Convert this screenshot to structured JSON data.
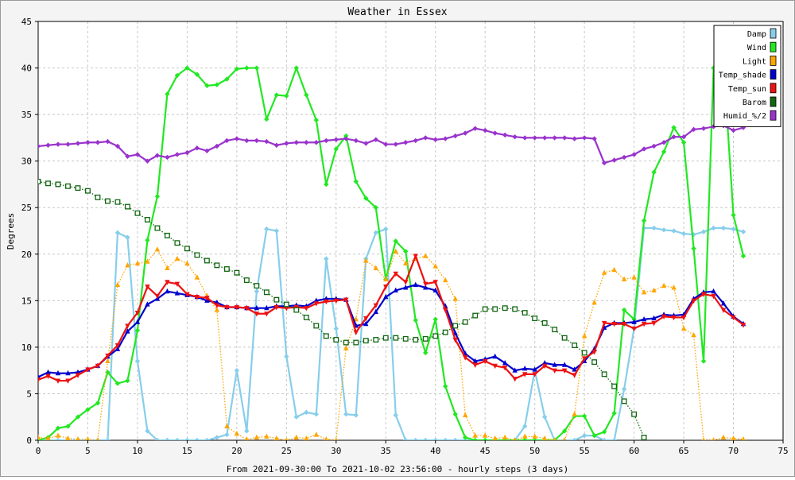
{
  "chart_data": {
    "type": "line",
    "title": "Weather in Essex",
    "xlabel": "From 2021-09-30:00 To 2021-10-02 23:56:00 - hourly steps (3 days)",
    "ylabel": "Degrees",
    "xlim": [
      0,
      75
    ],
    "ylim": [
      0,
      45
    ],
    "x_ticks": [
      0,
      5,
      10,
      15,
      20,
      25,
      30,
      35,
      40,
      45,
      50,
      55,
      60,
      65,
      70,
      75
    ],
    "y_ticks": [
      0,
      5,
      10,
      15,
      20,
      25,
      30,
      35,
      40,
      45
    ],
    "grid": true,
    "legend_position": "top-right",
    "series": [
      {
        "name": "Damp",
        "color": "#87ceeb",
        "marker": "diamond",
        "line": "solid",
        "values": [
          0,
          0,
          0,
          0,
          0,
          0,
          0,
          0,
          22.3,
          21.8,
          8.5,
          1,
          0,
          0,
          0,
          0,
          0,
          0,
          0.3,
          0.6,
          7.5,
          1,
          16,
          22.7,
          22.5,
          9,
          2.5,
          3,
          2.8,
          19.5,
          12,
          2.8,
          2.7,
          19.5,
          22.3,
          22.7,
          2.7,
          0,
          0,
          0,
          0,
          0,
          0,
          0,
          0,
          0,
          0,
          0,
          0,
          1.5,
          7.5,
          2.5,
          0,
          0,
          0,
          0.5,
          0.5,
          0,
          0,
          5.5,
          12,
          22.8,
          22.8,
          22.6,
          22.5,
          22.2,
          22.1,
          22.4,
          22.8,
          22.8,
          22.7,
          22.4
        ]
      },
      {
        "name": "Wind",
        "color": "#22e822",
        "marker": "diamond",
        "line": "solid",
        "values": [
          0,
          0.3,
          1.3,
          1.5,
          2.5,
          3.3,
          4,
          7.3,
          6.1,
          6.4,
          11.8,
          21.5,
          26.2,
          37.2,
          39.2,
          40,
          39.3,
          38.1,
          38.2,
          38.8,
          39.9,
          40,
          40,
          34.5,
          37.1,
          37,
          40,
          37.1,
          34.4,
          27.5,
          31.3,
          32.7,
          27.8,
          26,
          25,
          17.3,
          21.4,
          20.3,
          12.9,
          9.4,
          13,
          5.8,
          2.8,
          0.3,
          0,
          0,
          0,
          0,
          0,
          0,
          0,
          0,
          0,
          1,
          2.6,
          2.6,
          0.5,
          0.9,
          2.9,
          14,
          13,
          23.6,
          28.8,
          31,
          33.6,
          32,
          20.6,
          8.5,
          40,
          40.5,
          24.2,
          19.8
        ]
      },
      {
        "name": "Light",
        "color": "#ffa500",
        "marker": "triangle",
        "line": "dotted",
        "values": [
          0.3,
          0.2,
          0.5,
          0.2,
          0.1,
          0.1,
          0,
          8.5,
          16.7,
          18.8,
          19,
          19.2,
          20.5,
          18.5,
          19.5,
          19,
          17.5,
          15.5,
          14,
          1.5,
          0.7,
          0.1,
          0.3,
          0.4,
          0.2,
          0,
          0.3,
          0.2,
          0.6,
          0.1,
          0,
          9.9,
          13,
          19.3,
          18.5,
          17.3,
          20.3,
          19,
          19.5,
          19.8,
          18.7,
          17.2,
          15.2,
          2.7,
          0.5,
          0.5,
          0.2,
          0.3,
          0,
          0.4,
          0.4,
          0.2,
          0,
          0,
          2.8,
          11.2,
          14.8,
          18,
          18.3,
          17.3,
          17.5,
          15.9,
          16.1,
          16.6,
          16.4,
          12,
          11.3,
          0,
          0,
          0.3,
          0.2,
          0.1
        ]
      },
      {
        "name": "Temp_shade",
        "color": "#0000cc",
        "marker": "triangle",
        "line": "solid",
        "values": [
          6.8,
          7.3,
          7.2,
          7.2,
          7.3,
          7.6,
          8,
          9,
          9.8,
          11.7,
          12.7,
          14.6,
          15.2,
          16,
          15.8,
          15.6,
          15.4,
          15,
          14.8,
          14.3,
          14.3,
          14.2,
          14.2,
          14.2,
          14.4,
          14.4,
          14.5,
          14.4,
          15,
          15.2,
          15.2,
          15.1,
          12.3,
          12.5,
          13.8,
          15.4,
          16.1,
          16.4,
          16.7,
          16.4,
          16.1,
          14.4,
          11.5,
          9.3,
          8.5,
          8.7,
          9,
          8.3,
          7.5,
          7.7,
          7.6,
          8.3,
          8.1,
          8.1,
          7.6,
          8.5,
          9.8,
          12.1,
          12.6,
          12.6,
          12.7,
          13,
          13.1,
          13.5,
          13.4,
          13.5,
          15.2,
          15.9,
          16,
          14.7,
          13.3,
          12.5
        ]
      },
      {
        "name": "Temp_sun",
        "color": "#ee1111",
        "marker": "triangle-down",
        "line": "solid",
        "values": [
          6.5,
          6.9,
          6.4,
          6.4,
          7,
          7.6,
          8,
          9.1,
          10.2,
          12.3,
          13.7,
          16.5,
          15.5,
          17,
          16.8,
          15.7,
          15.4,
          15.3,
          14.5,
          14.3,
          14.3,
          14.2,
          13.6,
          13.6,
          14.3,
          14.2,
          14.3,
          14.2,
          14.7,
          14.9,
          15,
          15.1,
          11.6,
          13.1,
          14.5,
          16.5,
          17.9,
          17,
          19.8,
          16.8,
          17,
          14,
          10.8,
          8.9,
          8.1,
          8.5,
          8,
          7.8,
          6.6,
          7.1,
          7.1,
          8,
          7.5,
          7.5,
          7,
          8.8,
          9.5,
          12.6,
          12.5,
          12.5,
          12,
          12.5,
          12.6,
          13.3,
          13.2,
          13.2,
          15,
          15.7,
          15.5,
          14,
          13.2,
          12.4
        ]
      },
      {
        "name": "Barom",
        "color": "#116611",
        "marker": "square",
        "line": "dotted",
        "values": [
          27.8,
          27.6,
          27.5,
          27.3,
          27.1,
          26.8,
          26.1,
          25.7,
          25.6,
          25.1,
          24.4,
          23.7,
          22.8,
          22,
          21.2,
          20.6,
          19.9,
          19.3,
          18.8,
          18.4,
          18,
          17.2,
          16.6,
          15.9,
          15.1,
          14.6,
          14,
          13.2,
          12.3,
          11.2,
          10.8,
          10.5,
          10.5,
          10.7,
          10.8,
          11,
          11,
          10.9,
          10.8,
          10.9,
          11.2,
          11.6,
          12.3,
          12.7,
          13.4,
          14.1,
          14.1,
          14.2,
          14.1,
          13.7,
          13.1,
          12.6,
          11.9,
          11,
          10.2,
          9.4,
          8.4,
          7.1,
          5.8,
          4.2,
          2.8,
          0.3,
          -1.8,
          -4
        ]
      },
      {
        "name": "Humid_%/2",
        "color": "#9933cc",
        "marker": "diamond",
        "line": "solid",
        "values": [
          31.6,
          31.7,
          31.8,
          31.8,
          31.9,
          32,
          32,
          32.1,
          31.6,
          30.5,
          30.7,
          30,
          30.6,
          30.4,
          30.7,
          30.9,
          31.4,
          31.1,
          31.6,
          32.2,
          32.4,
          32.2,
          32.2,
          32.1,
          31.7,
          31.9,
          32,
          32,
          32,
          32.2,
          32.3,
          32.4,
          32.2,
          31.9,
          32.3,
          31.8,
          31.8,
          32,
          32.2,
          32.5,
          32.3,
          32.4,
          32.7,
          33,
          33.5,
          33.3,
          33,
          32.8,
          32.6,
          32.5,
          32.5,
          32.5,
          32.5,
          32.5,
          32.4,
          32.5,
          32.4,
          29.8,
          30.1,
          30.4,
          30.7,
          31.3,
          31.6,
          32,
          32.6,
          32.6,
          33.4,
          33.5,
          33.7,
          33.8,
          33.3,
          33.6
        ]
      }
    ]
  }
}
